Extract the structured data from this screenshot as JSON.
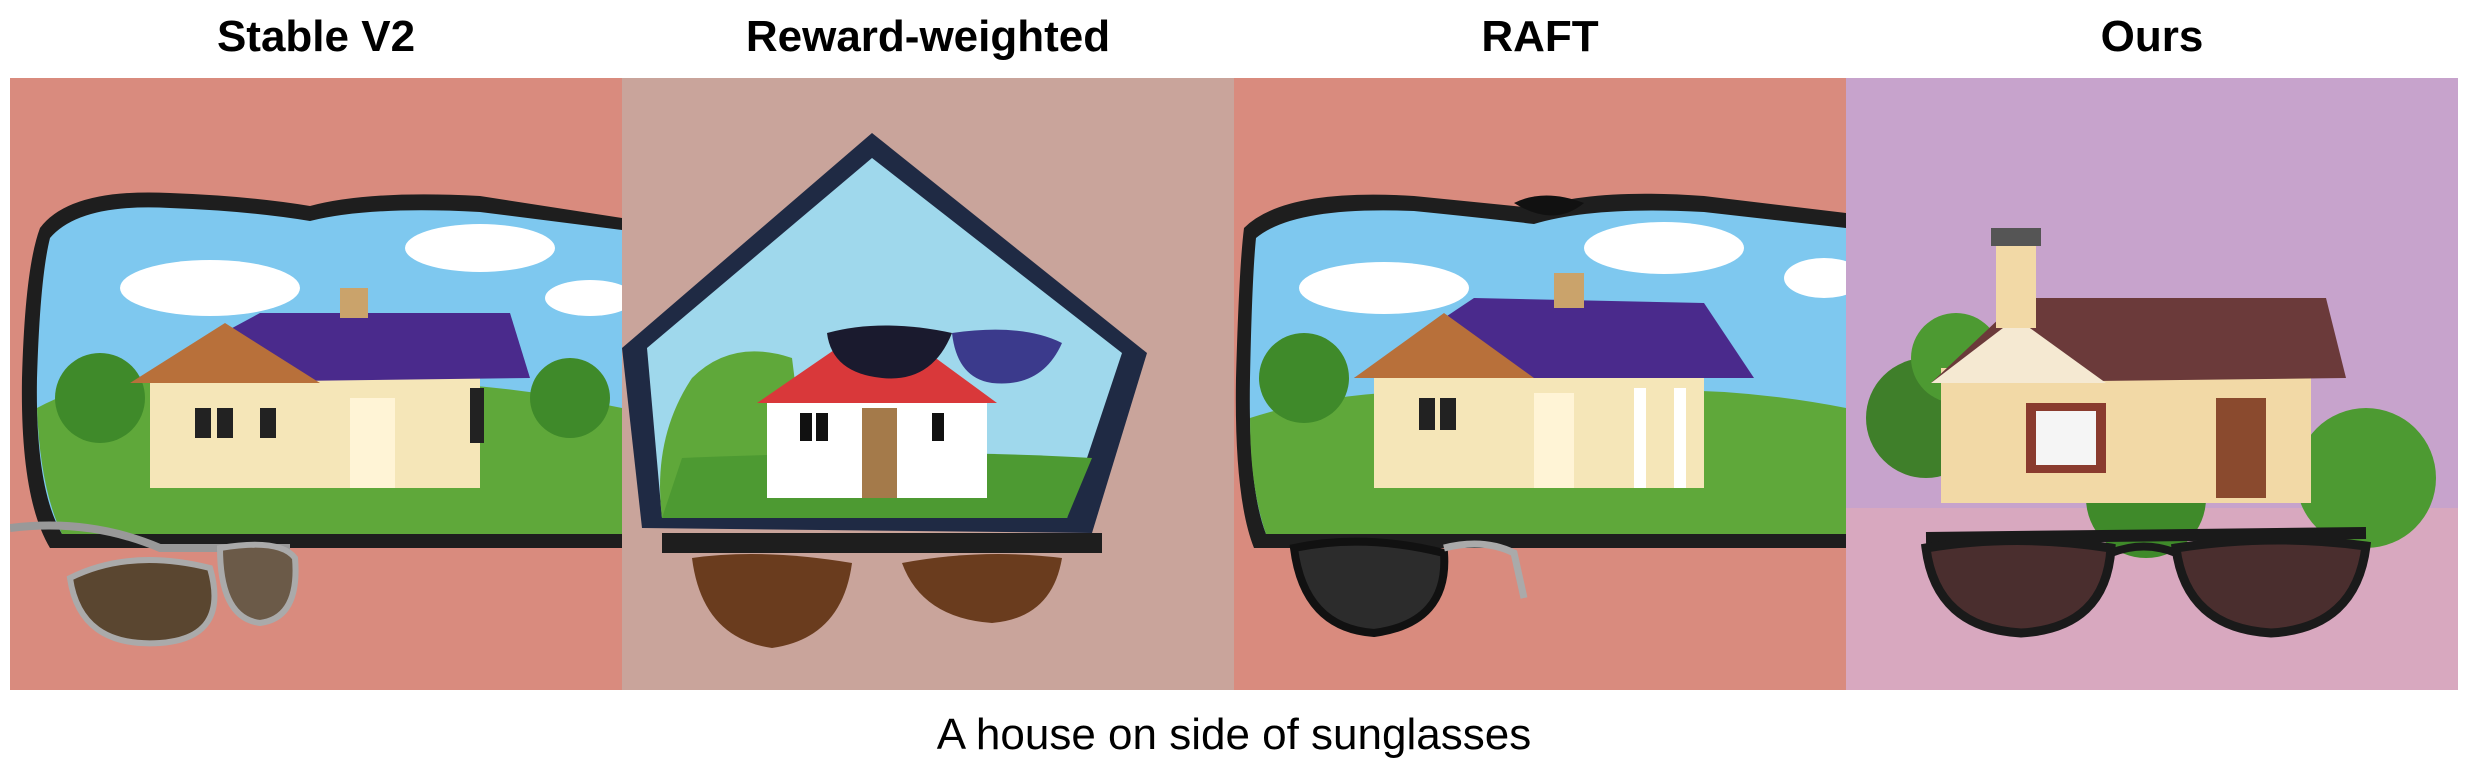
{
  "columns": [
    {
      "title": "Stable V2"
    },
    {
      "title": "Reward-weighted"
    },
    {
      "title": "RAFT"
    },
    {
      "title": "Ours"
    }
  ],
  "caption": "A house on side of sunglasses",
  "colors": {
    "salmon_background": "#d98b7e",
    "dusty_pink_background": "#c9a49b",
    "lavender_background": "#c7a3cc",
    "sky": "#7ec8ef",
    "grass": "#5fa83a",
    "roof_purple": "#4a2a8c",
    "roof_brown": "#6b3a3a",
    "house_cream": "#f5e6b8"
  }
}
